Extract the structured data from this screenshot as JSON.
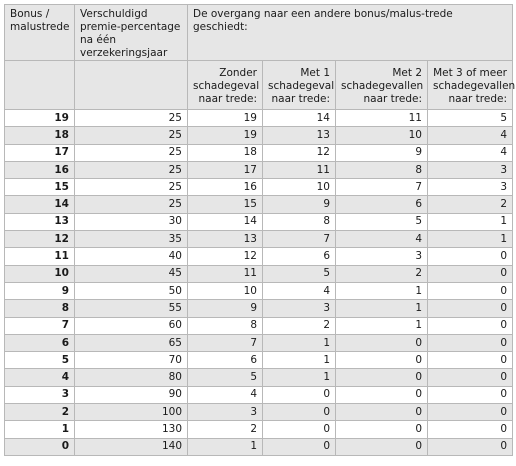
{
  "headers": {
    "step": "Bonus / malustrede",
    "premium": "Verschuldigd premie-percentage na één verzekeringsjaar",
    "transition": "De overgang naar een andere bonus/malus-trede geschiedt:",
    "claims0": "Zonder schadegeval naar trede:",
    "claims1": "Met 1 schadegeval naar trede:",
    "claims2": "Met 2 schadegevallen naar trede:",
    "claims3": "Met 3 of meer schadegevallen naar trede:"
  },
  "rows": [
    [
      "19",
      "25",
      "19",
      "14",
      "11",
      "5"
    ],
    [
      "18",
      "25",
      "19",
      "13",
      "10",
      "4"
    ],
    [
      "17",
      "25",
      "18",
      "12",
      "9",
      "4"
    ],
    [
      "16",
      "25",
      "17",
      "11",
      "8",
      "3"
    ],
    [
      "15",
      "25",
      "16",
      "10",
      "7",
      "3"
    ],
    [
      "14",
      "25",
      "15",
      "9",
      "6",
      "2"
    ],
    [
      "13",
      "30",
      "14",
      "8",
      "5",
      "1"
    ],
    [
      "12",
      "35",
      "13",
      "7",
      "4",
      "1"
    ],
    [
      "11",
      "40",
      "12",
      "6",
      "3",
      "0"
    ],
    [
      "10",
      "45",
      "11",
      "5",
      "2",
      "0"
    ],
    [
      "9",
      "50",
      "10",
      "4",
      "1",
      "0"
    ],
    [
      "8",
      "55",
      "9",
      "3",
      "1",
      "0"
    ],
    [
      "7",
      "60",
      "8",
      "2",
      "1",
      "0"
    ],
    [
      "6",
      "65",
      "7",
      "1",
      "0",
      "0"
    ],
    [
      "5",
      "70",
      "6",
      "1",
      "0",
      "0"
    ],
    [
      "4",
      "80",
      "5",
      "1",
      "0",
      "0"
    ],
    [
      "3",
      "90",
      "4",
      "0",
      "0",
      "0"
    ],
    [
      "2",
      "100",
      "3",
      "0",
      "0",
      "0"
    ],
    [
      "1",
      "130",
      "2",
      "0",
      "0",
      "0"
    ],
    [
      "0",
      "140",
      "1",
      "0",
      "0",
      "0"
    ]
  ]
}
